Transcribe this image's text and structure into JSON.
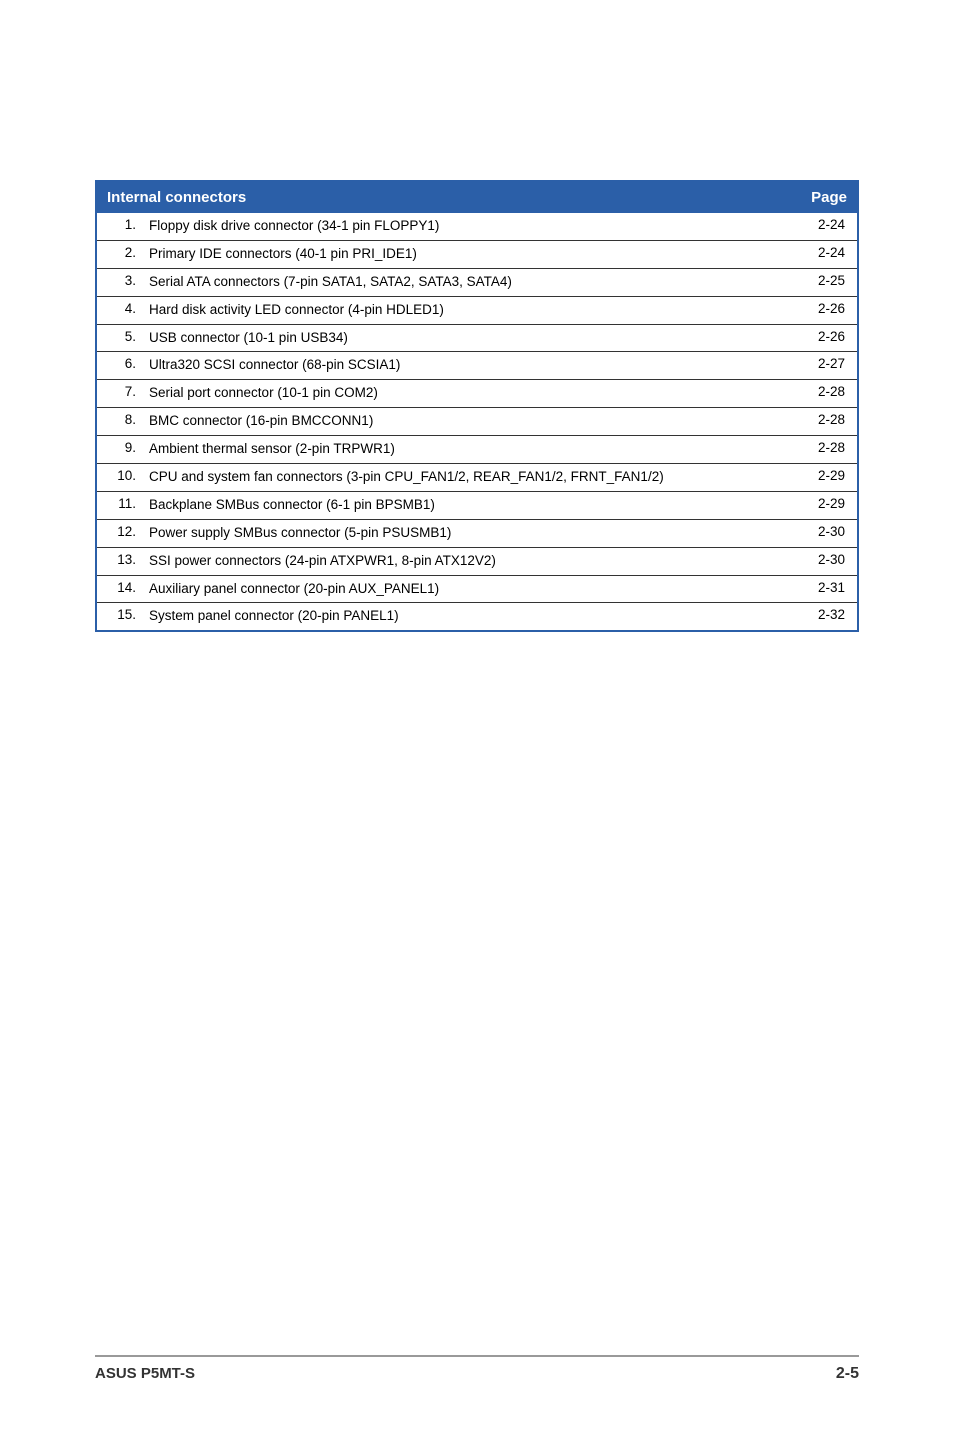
{
  "table": {
    "header_bg": "#2b5fa8",
    "header_text_color": "#ffffff",
    "border_color": "#2b5fa8",
    "row_border_color": "#333333",
    "title": "Internal connectors",
    "page_label": "Page",
    "rows": [
      {
        "num": "1.",
        "desc": "Floppy disk drive connector (34-1 pin FLOPPY1)",
        "page": "2-24"
      },
      {
        "num": "2.",
        "desc": "Primary IDE connectors (40-1 pin PRI_IDE1)",
        "page": "2-24"
      },
      {
        "num": "3.",
        "desc": "Serial ATA connectors (7-pin SATA1, SATA2, SATA3, SATA4)",
        "page": "2-25"
      },
      {
        "num": "4.",
        "desc": "Hard disk activity LED connector (4-pin HDLED1)",
        "page": "2-26"
      },
      {
        "num": "5.",
        "desc": "USB connector (10-1 pin USB34)",
        "page": "2-26"
      },
      {
        "num": "6.",
        "desc": "Ultra320 SCSI connector (68-pin SCSIA1)",
        "page": "2-27"
      },
      {
        "num": "7.",
        "desc": "Serial port connector (10-1 pin COM2)",
        "page": "2-28"
      },
      {
        "num": "8.",
        "desc": "BMC connector (16-pin BMCCONN1)",
        "page": "2-28"
      },
      {
        "num": "9.",
        "desc": "Ambient thermal sensor (2-pin TRPWR1)",
        "page": "2-28"
      },
      {
        "num": "10.",
        "desc": "CPU and system fan connectors (3-pin CPU_FAN1/2, REAR_FAN1/2, FRNT_FAN1/2)",
        "page": "2-29"
      },
      {
        "num": "11.",
        "desc": "Backplane SMBus connector (6-1 pin BPSMB1)",
        "page": "2-29"
      },
      {
        "num": "12.",
        "desc": "Power supply SMBus connector (5-pin PSUSMB1)",
        "page": "2-30"
      },
      {
        "num": "13.",
        "desc": "SSI power connectors (24-pin ATXPWR1, 8-pin ATX12V2)",
        "page": "2-30"
      },
      {
        "num": "14.",
        "desc": "Auxiliary panel connector (20-pin AUX_PANEL1)",
        "page": "2-31"
      },
      {
        "num": "15.",
        "desc": "System panel connector (20-pin PANEL1)",
        "page": "2-32"
      }
    ]
  },
  "footer": {
    "left": "ASUS P5MT-S",
    "right": "2-5"
  }
}
